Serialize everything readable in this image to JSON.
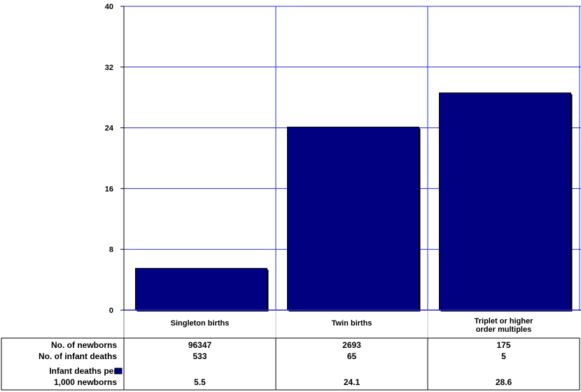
{
  "chart_data": {
    "type": "bar",
    "ylim": [
      0,
      40
    ],
    "yticks": [
      0,
      8,
      16,
      24,
      32,
      40
    ],
    "grid": true,
    "categories": [
      [
        "Singleton births"
      ],
      [
        "Twin births"
      ],
      [
        "Triplet or higher",
        "order multiples"
      ]
    ],
    "series": [
      {
        "name": "Infant deaths per 1,000 newborns",
        "values": [
          5.5,
          24.1,
          28.6
        ]
      }
    ],
    "table": {
      "rows": [
        {
          "label": [
            "No. of newborns"
          ],
          "values": [
            "96347",
            "2693",
            "175"
          ]
        },
        {
          "label": [
            "No. of infant deaths"
          ],
          "values": [
            "533",
            "65",
            "5"
          ]
        },
        {
          "label": [
            "Infant deaths per",
            "1,000 newborns"
          ],
          "values": [
            "5.5",
            "24.1",
            "28.6"
          ],
          "legend_key": true
        }
      ]
    },
    "colors": {
      "bar": "#000080",
      "grid": "#2a2ad0",
      "axis": "#000000"
    }
  }
}
